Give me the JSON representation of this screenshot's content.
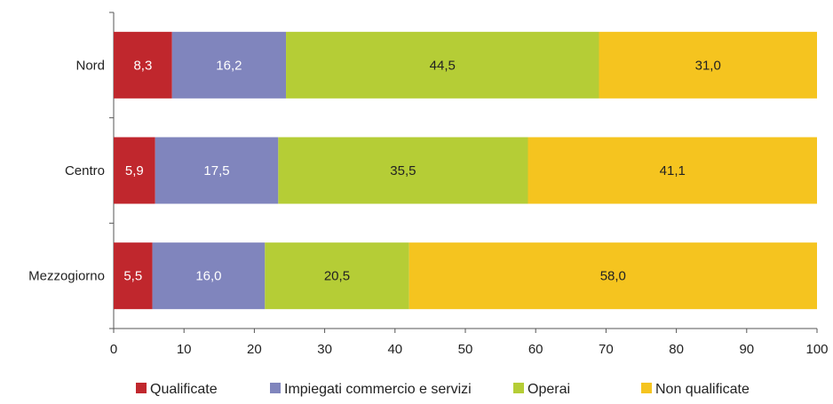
{
  "chart_data": {
    "type": "bar",
    "orientation": "horizontal",
    "stacked": true,
    "title": "",
    "xlabel": "",
    "ylabel": "",
    "xlim": [
      0,
      100
    ],
    "x_ticks": [
      "0",
      "10",
      "20",
      "30",
      "40",
      "50",
      "60",
      "70",
      "80",
      "90",
      "100"
    ],
    "categories": [
      "Nord",
      "Centro",
      "Mezzogiorno"
    ],
    "series": [
      {
        "name": "Qualificate",
        "color": "#c0272d",
        "values": [
          8.3,
          5.9,
          5.5
        ],
        "labels": [
          "8,3",
          "5,9",
          "5,5"
        ]
      },
      {
        "name": "Impiegati commercio e servizi",
        "color": "#8085bd",
        "values": [
          16.2,
          17.5,
          16.0
        ],
        "labels": [
          "16,2",
          "17,5",
          "16,0"
        ]
      },
      {
        "name": "Operai",
        "color": "#b5cd36",
        "values": [
          44.5,
          35.5,
          20.5
        ],
        "labels": [
          "44,5",
          "35,5",
          "20,5"
        ]
      },
      {
        "name": "Non qualificate",
        "color": "#f5c41f",
        "values": [
          31.0,
          41.1,
          58.0
        ],
        "labels": [
          "31,0",
          "41,1",
          "58,0"
        ]
      }
    ],
    "legend_position": "bottom",
    "grid": false
  }
}
